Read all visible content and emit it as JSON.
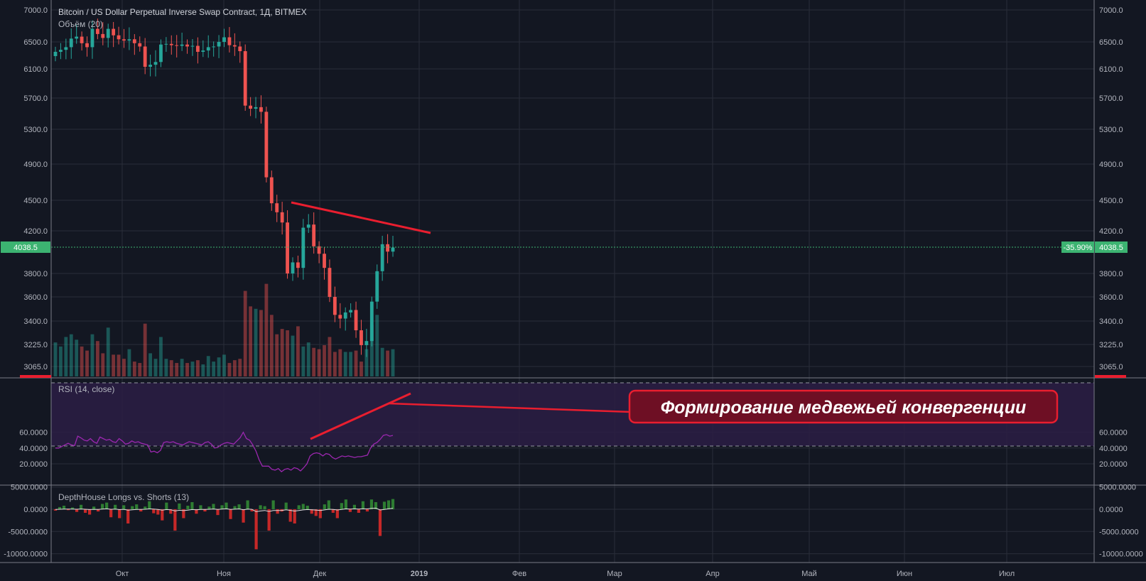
{
  "chart_title": "Bitcoin / US Dollar Perpetual Inverse Swap Contract, 1Д, BITMEX",
  "price_pane": {
    "volume_indicator_label": "Объём (20)",
    "y_ticks": [
      "7000.0",
      "6500.0",
      "6100.0",
      "5700.0",
      "5300.0",
      "4900.0",
      "4500.0",
      "4200.0",
      "3800.0",
      "3600.0",
      "3400.0",
      "3225.0",
      "3065.0"
    ],
    "last_price_label": "4038.5",
    "change_label": "-35.90%"
  },
  "rsi_pane": {
    "label": "RSI (14, close)",
    "y_ticks": [
      "60.0000",
      "40.0000",
      "20.0000"
    ]
  },
  "ls_pane": {
    "label": "DepthHouse Longs vs. Shorts (13)",
    "y_ticks": [
      "5000.0000",
      "0.0000",
      "-5000.0000",
      "-10000.0000"
    ]
  },
  "x_axis": {
    "labels": [
      "Окт",
      "Ноя",
      "Дек",
      "2019",
      "Фев",
      "Мар",
      "Апр",
      "Май",
      "Июн",
      "Июл"
    ]
  },
  "annotation": {
    "text": "Формирование медвежьей конвергенции"
  },
  "colors": {
    "background": "#131722",
    "grid": "#2a2e39",
    "up": "#26a69a",
    "down": "#ef5350",
    "trendline": "#e91e2f",
    "rsi_line": "#9c27b0",
    "rsi_band": "#2b1d44",
    "last_price": "#3cb371",
    "annotation_bg": "#6e0f24"
  },
  "chart_data": [
    {
      "type": "candlestick",
      "title": "Bitcoin / US Dollar Perpetual Inverse Swap Contract, 1Д, BITMEX",
      "x_labels": [
        "Окт",
        "Ноя",
        "Дек",
        "2019",
        "Фев",
        "Мар",
        "Апр",
        "Май",
        "Июн",
        "Июл"
      ],
      "y_range": [
        2950,
        7000
      ],
      "scale": "log",
      "last_price": 4038.5,
      "change_percent": -35.9,
      "close_approx": [
        6350,
        6380,
        6420,
        6550,
        6580,
        6480,
        6420,
        6700,
        6620,
        6560,
        6700,
        6600,
        6540,
        6520,
        6540,
        6480,
        6430,
        6130,
        6160,
        6200,
        6460,
        6470,
        6450,
        6440,
        6460,
        6430,
        6440,
        6350,
        6370,
        6420,
        6430,
        6500,
        6570,
        6450,
        6430,
        6360,
        5600,
        5560,
        5580,
        5520,
        4750,
        4470,
        4380,
        4280,
        3800,
        3900,
        3850,
        4230,
        4260,
        4050,
        3980,
        3850,
        3600,
        3450,
        3420,
        3470,
        3490,
        3330,
        3220,
        3250,
        3560,
        3820,
        4070,
        4000,
        4038.5
      ],
      "volume_approx": [
        3240,
        3210,
        3280,
        3300,
        3260,
        3210,
        3180,
        3300,
        3250,
        3160,
        3350,
        3150,
        3150,
        3120,
        3190,
        3100,
        3090,
        3380,
        3160,
        3120,
        3280,
        3120,
        3110,
        3090,
        3120,
        3090,
        3100,
        3110,
        3080,
        3140,
        3100,
        3130,
        3150,
        3090,
        3110,
        3120,
        3650,
        3520,
        3500,
        3490,
        3710,
        3450,
        3300,
        3340,
        3330,
        3290,
        3360,
        3210,
        3240,
        3200,
        3190,
        3220,
        3280,
        3170,
        3190,
        3170,
        3170,
        3180,
        3100,
        3190,
        3370,
        3450,
        3200,
        3180,
        3190
      ]
    },
    {
      "type": "line",
      "title": "RSI (14, close)",
      "y_range": [
        8,
        70
      ],
      "bands": [
        30,
        70
      ],
      "values_approx": [
        40,
        40,
        42,
        44,
        46,
        44,
        43,
        55,
        53,
        50,
        49,
        52,
        48,
        46,
        54,
        52,
        50,
        51,
        48,
        47,
        52,
        49,
        45,
        46,
        49,
        47,
        48,
        46,
        45,
        44,
        35,
        36,
        34,
        37,
        47,
        48,
        47,
        48,
        46,
        45,
        44,
        46,
        48,
        47,
        46,
        45,
        44,
        47,
        48,
        45,
        40,
        41,
        44,
        46,
        47,
        46,
        45,
        49,
        53,
        60,
        52,
        50,
        44,
        36,
        25,
        17,
        17,
        17,
        13,
        12,
        14,
        10,
        13,
        14,
        12,
        15,
        14,
        11,
        15,
        20,
        30,
        33,
        34,
        33,
        30,
        33,
        32,
        28,
        26,
        28,
        30,
        29,
        30,
        29,
        28,
        29,
        29,
        30,
        31,
        40,
        45,
        47,
        51,
        56,
        57,
        55,
        56
      ],
      "trendline": "rising (bearish convergence)"
    },
    {
      "type": "bar",
      "title": "DepthHouse Longs vs. Shorts (13)",
      "y_range": [
        -10500,
        5000
      ],
      "values_approx": [
        -300,
        500,
        800,
        -200,
        400,
        -600,
        1000,
        -800,
        -1200,
        600,
        -500,
        1200,
        1500,
        -1800,
        1000,
        -2000,
        900,
        -3200,
        700,
        1100,
        -500,
        600,
        1800,
        -900,
        -1200,
        -2500,
        1500,
        -1000,
        -4800,
        1300,
        -2000,
        800,
        1600,
        -1000,
        900,
        -500,
        600,
        1200,
        -1300,
        900,
        1500,
        -2200,
        700,
        1100,
        -3000,
        2000,
        -500,
        -9000,
        900,
        700,
        -4800,
        2000,
        -1000,
        -500,
        1500,
        -2800,
        -3200,
        900,
        1200,
        800,
        -1000,
        -1500,
        -2000,
        1100,
        2000,
        -800,
        -2000,
        1400,
        2200,
        -600,
        1000,
        -800,
        1800,
        -500,
        2200,
        1600,
        -6000,
        1700,
        2000,
        2300
      ]
    }
  ]
}
